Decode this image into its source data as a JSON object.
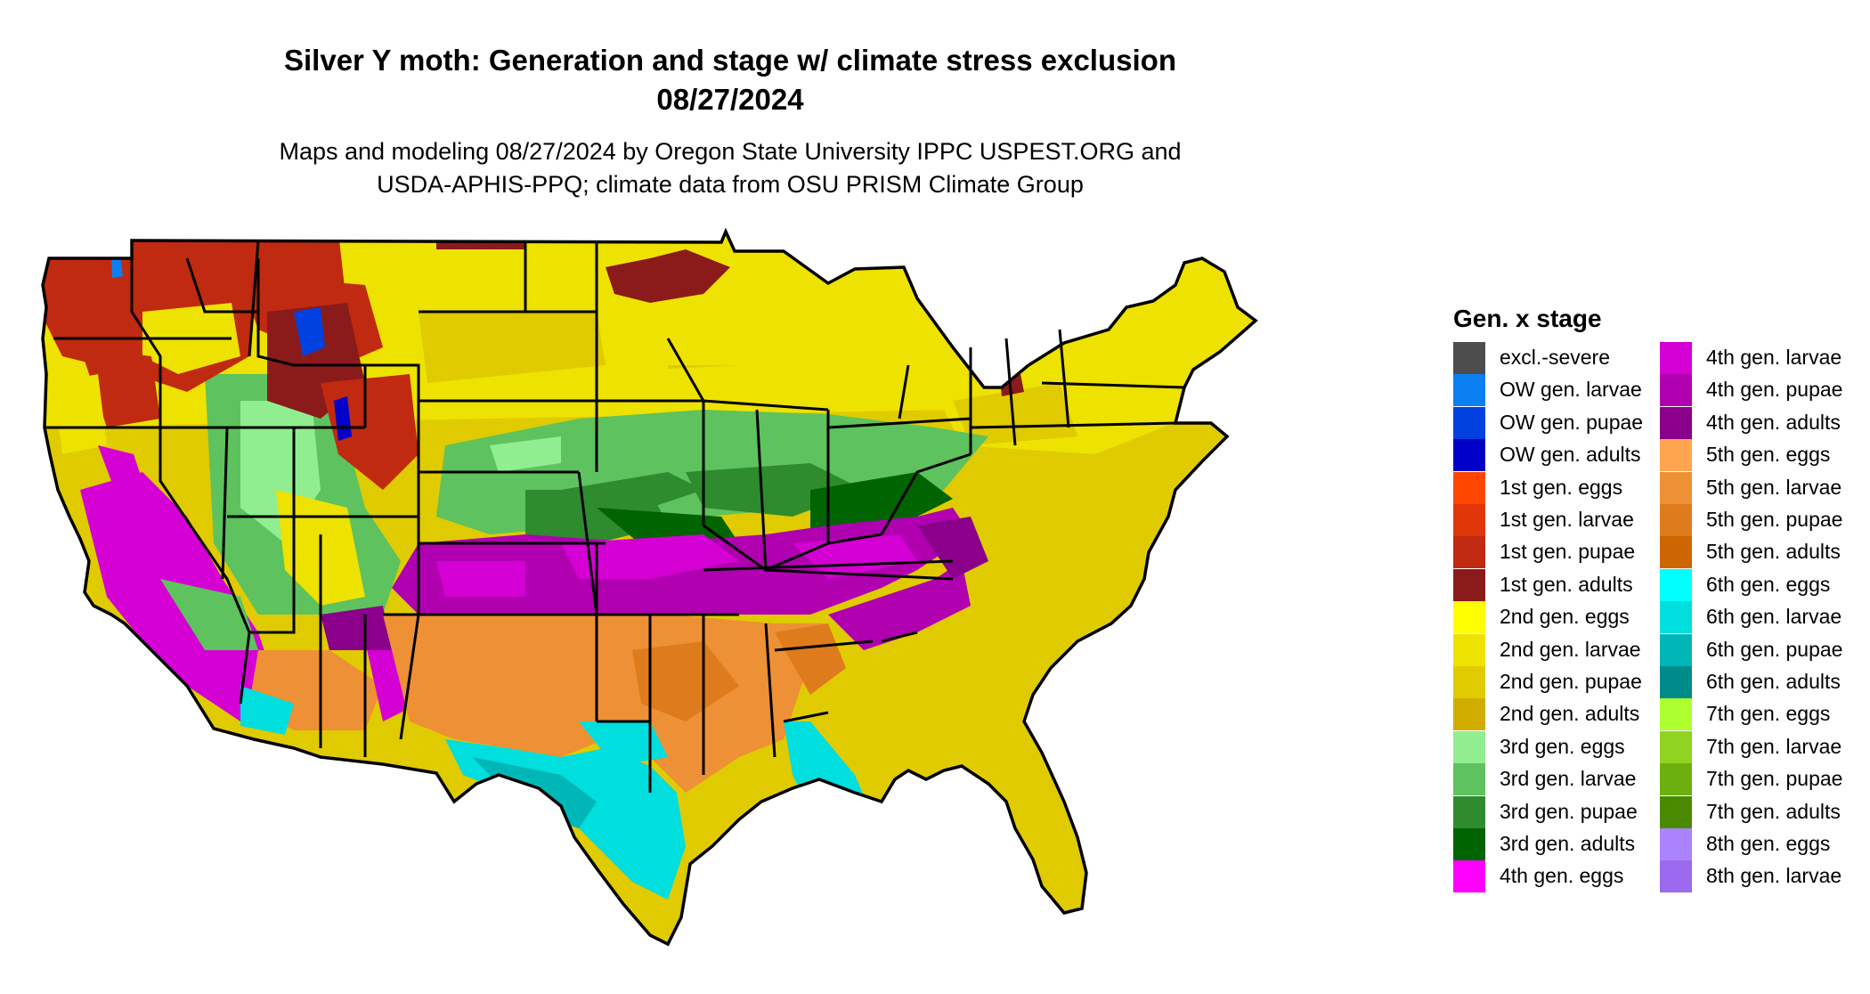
{
  "title": {
    "line1": "Silver Y moth: Generation and stage w/ climate stress exclusion",
    "line2": "08/27/2024"
  },
  "subtitle": {
    "line1": "Maps and modeling 08/27/2024 by Oregon State University IPPC USPEST.ORG and",
    "line2": "USDA-APHIS-PPQ; climate data from OSU PRISM Climate Group"
  },
  "legend": {
    "title": "Gen. x stage",
    "items": [
      {
        "label": "excl.-severe",
        "color": "#4d4d4d"
      },
      {
        "label": "OW gen. larvae",
        "color": "#0a7ff0"
      },
      {
        "label": "OW gen. pupae",
        "color": "#0041e0"
      },
      {
        "label": "OW gen. adults",
        "color": "#0000c8"
      },
      {
        "label": "1st gen. eggs",
        "color": "#ff4500"
      },
      {
        "label": "1st gen. larvae",
        "color": "#e0360a"
      },
      {
        "label": "1st gen. pupae",
        "color": "#c02a10"
      },
      {
        "label": "1st gen. adults",
        "color": "#8b1a1a"
      },
      {
        "label": "2nd gen. eggs",
        "color": "#ffff00"
      },
      {
        "label": "2nd gen. larvae",
        "color": "#eee200"
      },
      {
        "label": "2nd gen. pupae",
        "color": "#dfcb00"
      },
      {
        "label": "2nd gen. adults",
        "color": "#d1ad00"
      },
      {
        "label": "3rd gen. eggs",
        "color": "#90ee90"
      },
      {
        "label": "3rd gen. larvae",
        "color": "#5ec25e"
      },
      {
        "label": "3rd gen. pupae",
        "color": "#2e8b2e"
      },
      {
        "label": "3rd gen. adults",
        "color": "#006400"
      },
      {
        "label": "4th gen. eggs",
        "color": "#ff00ff"
      },
      {
        "label": "4th gen. larvae",
        "color": "#d400d4"
      },
      {
        "label": "4th gen. pupae",
        "color": "#b000b0"
      },
      {
        "label": "4th gen. adults",
        "color": "#8b008b"
      },
      {
        "label": "5th gen. eggs",
        "color": "#ffa54f"
      },
      {
        "label": "5th gen. larvae",
        "color": "#ee9035"
      },
      {
        "label": "5th gen. pupae",
        "color": "#de7b1c"
      },
      {
        "label": "5th gen. adults",
        "color": "#cd6600"
      },
      {
        "label": "6th gen. eggs",
        "color": "#00ffff"
      },
      {
        "label": "6th gen. larvae",
        "color": "#00dede"
      },
      {
        "label": "6th gen. pupae",
        "color": "#00b6b6"
      },
      {
        "label": "6th gen. adults",
        "color": "#008b8b"
      },
      {
        "label": "7th gen. eggs",
        "color": "#adff2f"
      },
      {
        "label": "7th gen. larvae",
        "color": "#8ed420"
      },
      {
        "label": "7th gen. pupae",
        "color": "#6cb010"
      },
      {
        "label": "7th gen. adults",
        "color": "#4a8a00"
      },
      {
        "label": "8th gen. eggs",
        "color": "#ab82ff"
      },
      {
        "label": "8th gen. larvae",
        "color": "#9b6aee"
      }
    ]
  }
}
